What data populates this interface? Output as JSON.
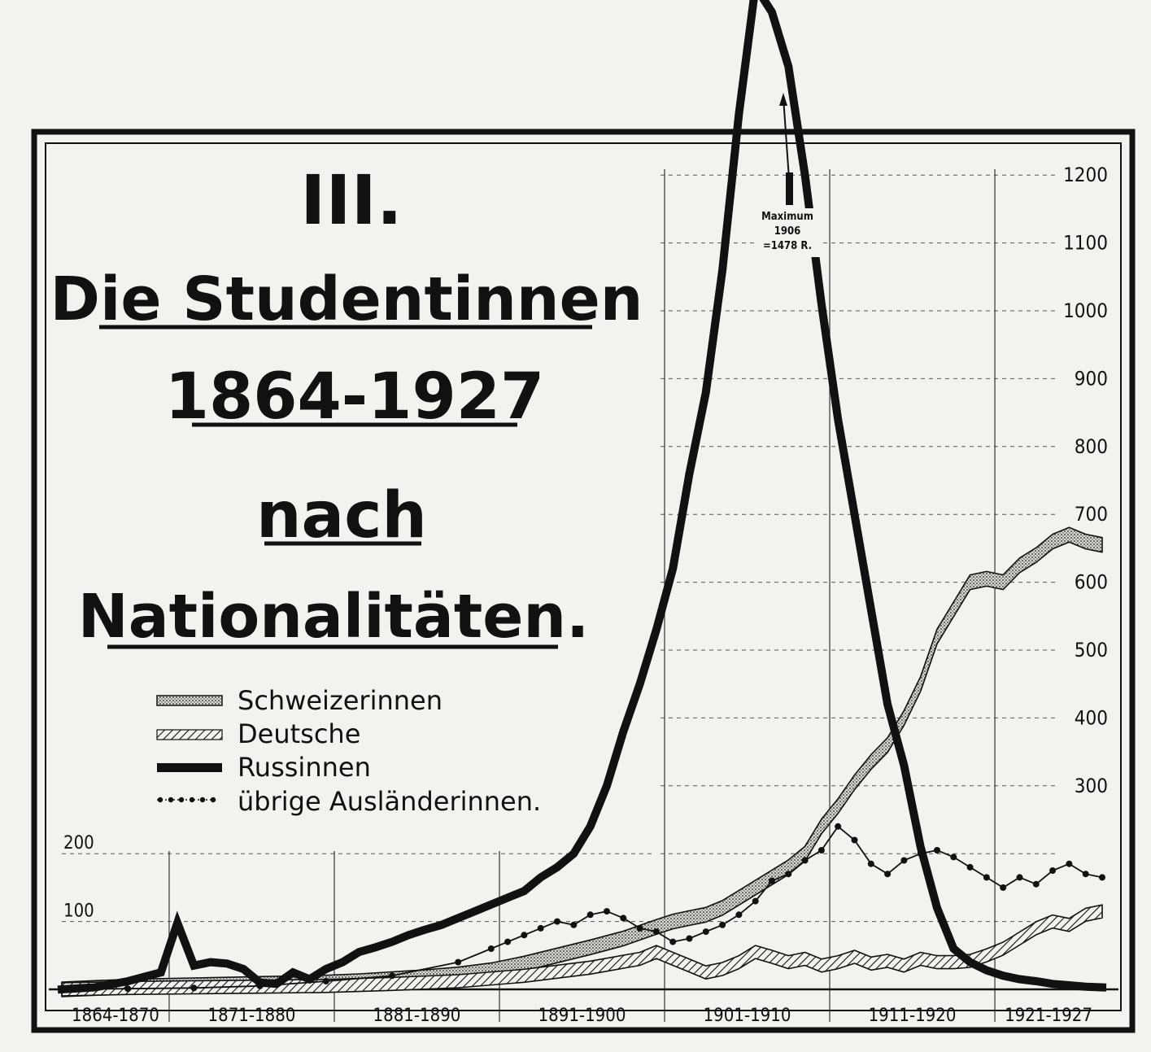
{
  "chart_data": {
    "type": "line",
    "title": {
      "number": "III.",
      "line1": "Die Studentinnen",
      "line2": "1864-1927",
      "line3": "nach",
      "line4": "Nationalitäten."
    },
    "xlabel": "",
    "ylabel": "",
    "x_period_labels": [
      "1864-1870",
      "1871-1880",
      "1881-1890",
      "1891-1900",
      "1901-1910",
      "1911-1920",
      "1921-1927"
    ],
    "y_ticks": [
      100,
      200,
      300,
      400,
      500,
      600,
      700,
      800,
      900,
      1000,
      1100,
      1200
    ],
    "ylim": [
      0,
      1478
    ],
    "xlim": [
      1864,
      1927
    ],
    "grid": true,
    "legend_position": "left-middle",
    "annotation": {
      "line1": "Maximum",
      "line2": "1906",
      "line3": "=1478 R.",
      "x": 1906,
      "y": 1478
    },
    "series": [
      {
        "name": "Schweizerinnen",
        "key": "swiss",
        "style": "dotted-band",
        "color": "#222222",
        "x": [
          1864,
          1866,
          1868,
          1870,
          1872,
          1874,
          1876,
          1878,
          1880,
          1882,
          1884,
          1886,
          1888,
          1890,
          1892,
          1894,
          1896,
          1898,
          1900,
          1901,
          1902,
          1903,
          1904,
          1905,
          1906,
          1907,
          1908,
          1909,
          1910,
          1911,
          1912,
          1913,
          1914,
          1915,
          1916,
          1917,
          1918,
          1919,
          1920,
          1921,
          1922,
          1923,
          1924,
          1925,
          1926,
          1927
        ],
        "values": [
          0,
          2,
          4,
          5,
          6,
          7,
          8,
          9,
          10,
          12,
          15,
          18,
          22,
          28,
          38,
          50,
          62,
          75,
          92,
          100,
          105,
          110,
          120,
          135,
          150,
          165,
          180,
          200,
          240,
          270,
          305,
          335,
          360,
          400,
          450,
          520,
          560,
          600,
          605,
          600,
          625,
          640,
          660,
          670,
          660,
          655
        ]
      },
      {
        "name": "Deutsche",
        "key": "german",
        "style": "hatched-band",
        "color": "#222222",
        "x": [
          1864,
          1868,
          1872,
          1876,
          1880,
          1884,
          1888,
          1892,
          1896,
          1899,
          1900,
          1901,
          1902,
          1903,
          1904,
          1905,
          1906,
          1907,
          1908,
          1909,
          1910,
          1911,
          1912,
          1913,
          1914,
          1915,
          1916,
          1917,
          1918,
          1919,
          1920,
          1921,
          1922,
          1923,
          1924,
          1925,
          1926,
          1927
        ],
        "values": [
          0,
          2,
          3,
          4,
          5,
          8,
          12,
          20,
          32,
          45,
          55,
          45,
          35,
          25,
          30,
          40,
          55,
          48,
          40,
          45,
          35,
          40,
          48,
          38,
          42,
          35,
          45,
          40,
          40,
          42,
          50,
          60,
          75,
          90,
          100,
          95,
          110,
          115
        ]
      },
      {
        "name": "Russinnen",
        "key": "russian",
        "style": "thick-line",
        "color": "#111111",
        "x": [
          1864,
          1866,
          1868,
          1870,
          1871,
          1872,
          1873,
          1874,
          1875,
          1876,
          1877,
          1878,
          1879,
          1880,
          1881,
          1882,
          1883,
          1884,
          1885,
          1886,
          1887,
          1888,
          1889,
          1890,
          1891,
          1892,
          1893,
          1894,
          1895,
          1896,
          1897,
          1898,
          1899,
          1900,
          1901,
          1902,
          1903,
          1904,
          1905,
          1906,
          1907,
          1908,
          1909,
          1910,
          1911,
          1912,
          1913,
          1914,
          1915,
          1916,
          1917,
          1918,
          1919,
          1920,
          1921,
          1922,
          1923,
          1924,
          1925,
          1926,
          1927
        ],
        "values": [
          0,
          3,
          12,
          25,
          98,
          35,
          40,
          38,
          30,
          10,
          8,
          25,
          15,
          30,
          40,
          55,
          62,
          70,
          80,
          88,
          95,
          105,
          115,
          125,
          135,
          145,
          165,
          180,
          200,
          240,
          300,
          380,
          450,
          530,
          620,
          760,
          880,
          1060,
          1290,
          1478,
          1440,
          1360,
          1200,
          1010,
          840,
          700,
          560,
          420,
          330,
          210,
          120,
          60,
          40,
          28,
          20,
          15,
          12,
          8,
          6,
          4,
          3
        ]
      },
      {
        "name": "übrige Ausländerinnen.",
        "key": "others",
        "style": "dotted-line",
        "color": "#111111",
        "x": [
          1864,
          1868,
          1872,
          1876,
          1880,
          1884,
          1888,
          1890,
          1891,
          1892,
          1893,
          1894,
          1895,
          1896,
          1897,
          1898,
          1899,
          1900,
          1901,
          1902,
          1903,
          1904,
          1905,
          1906,
          1907,
          1908,
          1909,
          1910,
          1911,
          1912,
          1913,
          1914,
          1915,
          1916,
          1917,
          1918,
          1919,
          1920,
          1921,
          1922,
          1923,
          1924,
          1925,
          1926,
          1927
        ],
        "values": [
          0,
          1,
          2,
          5,
          12,
          20,
          40,
          60,
          70,
          80,
          90,
          100,
          95,
          110,
          115,
          105,
          90,
          85,
          70,
          75,
          85,
          95,
          110,
          130,
          160,
          170,
          190,
          205,
          240,
          220,
          185,
          170,
          190,
          200,
          205,
          195,
          180,
          165,
          150,
          165,
          155,
          175,
          185,
          170,
          165
        ]
      }
    ]
  }
}
